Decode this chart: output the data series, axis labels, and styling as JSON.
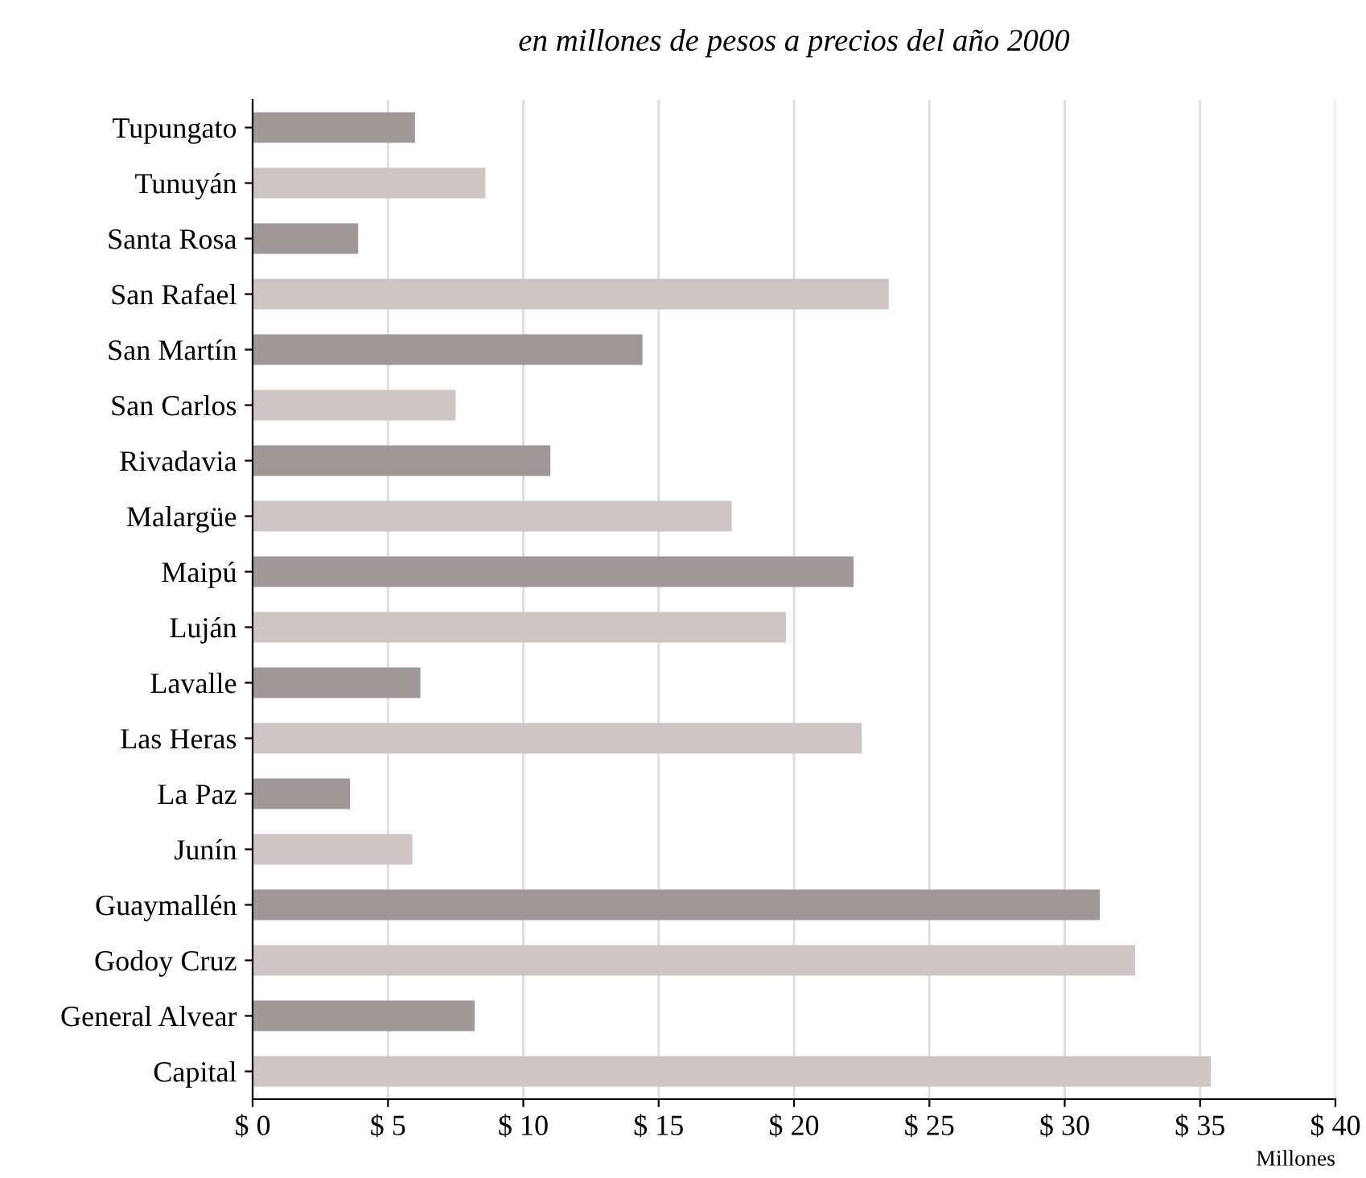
{
  "chart_data": {
    "type": "bar",
    "orientation": "horizontal",
    "title": "en millones de pesos a precios del año 2000",
    "xlabel": "Millones",
    "categories": [
      "Tupungato",
      "Tunuyán",
      "Santa Rosa",
      "San Rafael",
      "San Martín",
      "San Carlos",
      "Rivadavia",
      "Malargüe",
      "Maipú",
      "Luján",
      "Lavalle",
      "Las Heras",
      "La Paz",
      "Junín",
      "Guaymallén",
      "Godoy Cruz",
      "General Alvear",
      "Capital"
    ],
    "values": [
      6.0,
      8.6,
      3.9,
      23.5,
      14.4,
      7.5,
      11.0,
      17.7,
      22.2,
      19.7,
      6.2,
      22.5,
      3.6,
      5.9,
      31.3,
      32.6,
      8.2,
      35.4
    ],
    "colors": [
      "#a09898",
      "#cfc5c5",
      "#a09898",
      "#cfc5c5",
      "#a09898",
      "#cfc5c5",
      "#a09898",
      "#cfc5c5",
      "#a09898",
      "#cfc5c5",
      "#a09898",
      "#cfc5c5",
      "#a09898",
      "#cfc5c5",
      "#a09898",
      "#cfc5c5",
      "#a09898",
      "#cfc5c5"
    ],
    "xlim": [
      0,
      40
    ],
    "xticks": [
      {
        "value": 0,
        "label": "$ 0"
      },
      {
        "value": 5,
        "label": "$ 5"
      },
      {
        "value": 10,
        "label": "$ 10"
      },
      {
        "value": 15,
        "label": "$ 15"
      },
      {
        "value": 20,
        "label": "$ 20"
      },
      {
        "value": 25,
        "label": "$ 25"
      },
      {
        "value": 30,
        "label": "$ 30"
      },
      {
        "value": 35,
        "label": "$ 35"
      },
      {
        "value": 40,
        "label": "$ 40"
      }
    ],
    "grid": "x",
    "legend": false
  }
}
